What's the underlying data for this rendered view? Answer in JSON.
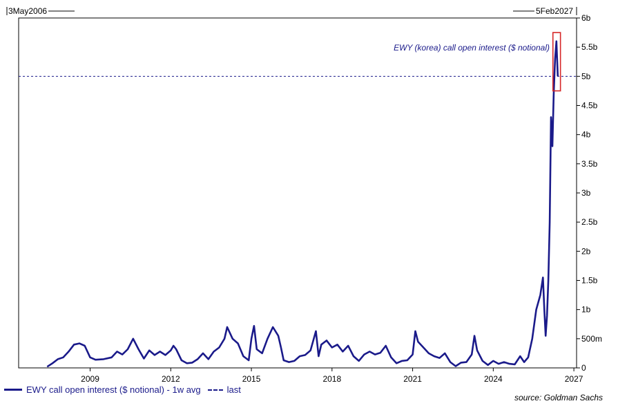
{
  "chart_data": {
    "type": "line",
    "range_start": "3May2006",
    "range_end": "5Feb2027",
    "annotation": "EWY (korea) call open interest ($ notional)",
    "source": "source: Goldman Sachs",
    "xlim": [
      2006.34,
      2027.1
    ],
    "ylim": [
      0,
      6000000000
    ],
    "x_ticks": [
      2009,
      2012,
      2015,
      2018,
      2021,
      2024,
      2027
    ],
    "y_ticks": [
      {
        "value": 0,
        "label": "0"
      },
      {
        "value": 500000000,
        "label": "500m"
      },
      {
        "value": 1000000000,
        "label": "1b"
      },
      {
        "value": 1500000000,
        "label": "1.5b"
      },
      {
        "value": 2000000000,
        "label": "2b"
      },
      {
        "value": 2500000000,
        "label": "2.5b"
      },
      {
        "value": 3000000000,
        "label": "3b"
      },
      {
        "value": 3500000000,
        "label": "3.5b"
      },
      {
        "value": 4000000000,
        "label": "4b"
      },
      {
        "value": 4500000000,
        "label": "4.5b"
      },
      {
        "value": 5000000000,
        "label": "5b"
      },
      {
        "value": 5500000000,
        "label": "5.5b"
      },
      {
        "value": 6000000000,
        "label": "6b"
      }
    ],
    "series": [
      {
        "name": "EWY call open interest ($ notional) - 1w avg",
        "color": "#1a1a8a",
        "style": "solid",
        "points": [
          [
            2007.4,
            20000000
          ],
          [
            2007.6,
            80000000
          ],
          [
            2007.8,
            150000000
          ],
          [
            2008.0,
            180000000
          ],
          [
            2008.2,
            280000000
          ],
          [
            2008.4,
            400000000
          ],
          [
            2008.6,
            420000000
          ],
          [
            2008.8,
            380000000
          ],
          [
            2009.0,
            180000000
          ],
          [
            2009.2,
            140000000
          ],
          [
            2009.5,
            150000000
          ],
          [
            2009.8,
            180000000
          ],
          [
            2010.0,
            280000000
          ],
          [
            2010.2,
            230000000
          ],
          [
            2010.4,
            320000000
          ],
          [
            2010.6,
            500000000
          ],
          [
            2010.8,
            320000000
          ],
          [
            2011.0,
            160000000
          ],
          [
            2011.2,
            300000000
          ],
          [
            2011.4,
            220000000
          ],
          [
            2011.6,
            280000000
          ],
          [
            2011.8,
            220000000
          ],
          [
            2012.0,
            300000000
          ],
          [
            2012.1,
            380000000
          ],
          [
            2012.2,
            320000000
          ],
          [
            2012.4,
            130000000
          ],
          [
            2012.6,
            80000000
          ],
          [
            2012.8,
            90000000
          ],
          [
            2013.0,
            150000000
          ],
          [
            2013.2,
            250000000
          ],
          [
            2013.4,
            150000000
          ],
          [
            2013.6,
            280000000
          ],
          [
            2013.8,
            350000000
          ],
          [
            2014.0,
            500000000
          ],
          [
            2014.1,
            700000000
          ],
          [
            2014.3,
            500000000
          ],
          [
            2014.5,
            420000000
          ],
          [
            2014.7,
            200000000
          ],
          [
            2014.9,
            130000000
          ],
          [
            2015.0,
            500000000
          ],
          [
            2015.1,
            720000000
          ],
          [
            2015.2,
            320000000
          ],
          [
            2015.4,
            250000000
          ],
          [
            2015.6,
            500000000
          ],
          [
            2015.8,
            700000000
          ],
          [
            2016.0,
            550000000
          ],
          [
            2016.1,
            350000000
          ],
          [
            2016.2,
            130000000
          ],
          [
            2016.4,
            100000000
          ],
          [
            2016.6,
            120000000
          ],
          [
            2016.8,
            200000000
          ],
          [
            2017.0,
            220000000
          ],
          [
            2017.2,
            300000000
          ],
          [
            2017.4,
            630000000
          ],
          [
            2017.5,
            200000000
          ],
          [
            2017.6,
            400000000
          ],
          [
            2017.8,
            470000000
          ],
          [
            2018.0,
            350000000
          ],
          [
            2018.2,
            400000000
          ],
          [
            2018.4,
            280000000
          ],
          [
            2018.6,
            380000000
          ],
          [
            2018.8,
            200000000
          ],
          [
            2019.0,
            120000000
          ],
          [
            2019.2,
            230000000
          ],
          [
            2019.4,
            280000000
          ],
          [
            2019.6,
            230000000
          ],
          [
            2019.8,
            260000000
          ],
          [
            2020.0,
            380000000
          ],
          [
            2020.2,
            180000000
          ],
          [
            2020.4,
            80000000
          ],
          [
            2020.6,
            120000000
          ],
          [
            2020.8,
            130000000
          ],
          [
            2021.0,
            230000000
          ],
          [
            2021.1,
            630000000
          ],
          [
            2021.2,
            450000000
          ],
          [
            2021.4,
            350000000
          ],
          [
            2021.6,
            250000000
          ],
          [
            2021.8,
            200000000
          ],
          [
            2022.0,
            170000000
          ],
          [
            2022.2,
            250000000
          ],
          [
            2022.4,
            100000000
          ],
          [
            2022.6,
            30000000
          ],
          [
            2022.8,
            90000000
          ],
          [
            2023.0,
            100000000
          ],
          [
            2023.2,
            230000000
          ],
          [
            2023.3,
            550000000
          ],
          [
            2023.4,
            300000000
          ],
          [
            2023.6,
            120000000
          ],
          [
            2023.8,
            50000000
          ],
          [
            2024.0,
            120000000
          ],
          [
            2024.2,
            70000000
          ],
          [
            2024.4,
            100000000
          ],
          [
            2024.6,
            70000000
          ],
          [
            2024.8,
            60000000
          ],
          [
            2025.0,
            200000000
          ],
          [
            2025.15,
            100000000
          ],
          [
            2025.3,
            180000000
          ],
          [
            2025.45,
            500000000
          ],
          [
            2025.6,
            1000000000
          ],
          [
            2025.75,
            1250000000
          ],
          [
            2025.85,
            1550000000
          ],
          [
            2025.9,
            1000000000
          ],
          [
            2025.95,
            550000000
          ],
          [
            2026.0,
            900000000
          ],
          [
            2026.05,
            1500000000
          ],
          [
            2026.1,
            2500000000
          ],
          [
            2026.15,
            4300000000
          ],
          [
            2026.2,
            3800000000
          ],
          [
            2026.25,
            4700000000
          ],
          [
            2026.3,
            5300000000
          ],
          [
            2026.35,
            5600000000
          ],
          [
            2026.4,
            5000000000
          ]
        ]
      }
    ],
    "last_value": 5000000000,
    "legend": {
      "series_label": "EWY call open interest ($ notional) - 1w avg",
      "last_label": "last"
    },
    "highlight_color": "#d62728",
    "grid": false,
    "legend_placement": "bottom-left"
  }
}
